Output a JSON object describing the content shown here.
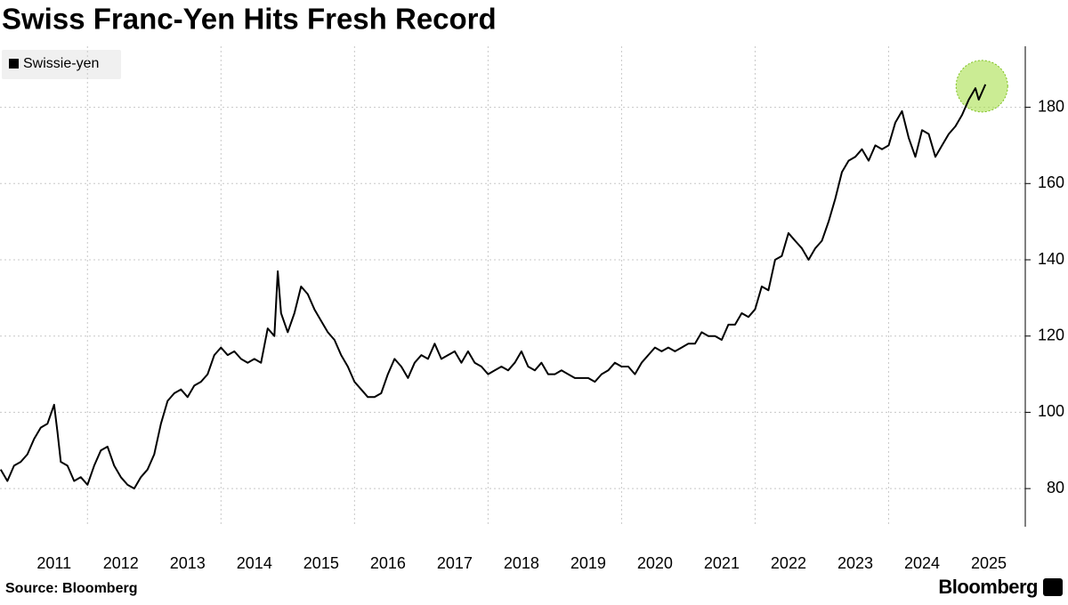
{
  "chart_data": {
    "type": "line",
    "title": "Swiss Franc-Yen Hits Fresh Record",
    "source": "Source: Bloomberg",
    "brand": "Bloomberg",
    "x": [
      2010.7,
      2010.8,
      2010.9,
      2011.0,
      2011.1,
      2011.2,
      2011.3,
      2011.4,
      2011.5,
      2011.55,
      2011.6,
      2011.7,
      2011.8,
      2011.9,
      2012.0,
      2012.1,
      2012.2,
      2012.3,
      2012.4,
      2012.5,
      2012.6,
      2012.7,
      2012.8,
      2012.9,
      2013.0,
      2013.1,
      2013.2,
      2013.3,
      2013.4,
      2013.5,
      2013.6,
      2013.7,
      2013.8,
      2013.9,
      2014.0,
      2014.1,
      2014.2,
      2014.3,
      2014.4,
      2014.5,
      2014.6,
      2014.7,
      2014.8,
      2014.85,
      2014.9,
      2015.0,
      2015.1,
      2015.2,
      2015.3,
      2015.4,
      2015.5,
      2015.6,
      2015.7,
      2015.8,
      2015.9,
      2016.0,
      2016.1,
      2016.2,
      2016.3,
      2016.4,
      2016.5,
      2016.6,
      2016.7,
      2016.8,
      2016.9,
      2017.0,
      2017.1,
      2017.2,
      2017.3,
      2017.4,
      2017.5,
      2017.6,
      2017.7,
      2017.8,
      2017.9,
      2018.0,
      2018.1,
      2018.2,
      2018.3,
      2018.4,
      2018.5,
      2018.6,
      2018.7,
      2018.8,
      2018.9,
      2019.0,
      2019.1,
      2019.2,
      2019.3,
      2019.4,
      2019.5,
      2019.6,
      2019.7,
      2019.8,
      2019.9,
      2020.0,
      2020.1,
      2020.2,
      2020.3,
      2020.4,
      2020.5,
      2020.6,
      2020.7,
      2020.8,
      2020.9,
      2021.0,
      2021.1,
      2021.2,
      2021.3,
      2021.4,
      2021.5,
      2021.6,
      2021.7,
      2021.8,
      2021.9,
      2022.0,
      2022.1,
      2022.2,
      2022.3,
      2022.4,
      2022.5,
      2022.6,
      2022.7,
      2022.8,
      2022.9,
      2023.0,
      2023.1,
      2023.2,
      2023.3,
      2023.4,
      2023.5,
      2023.6,
      2023.7,
      2023.8,
      2023.9,
      2024.0,
      2024.1,
      2024.2,
      2024.3,
      2024.4,
      2024.5,
      2024.6,
      2024.7,
      2024.8,
      2024.9,
      2025.0,
      2025.1,
      2025.2,
      2025.3,
      2025.35,
      2025.45
    ],
    "series": [
      {
        "name": "Swissie-yen",
        "color": "#000000",
        "values": [
          85,
          82,
          86,
          87,
          89,
          93,
          96,
          97,
          102,
          95,
          87,
          86,
          82,
          83,
          81,
          86,
          90,
          91,
          86,
          83,
          81,
          80,
          83,
          85,
          89,
          97,
          103,
          105,
          106,
          104,
          107,
          108,
          110,
          115,
          117,
          115,
          116,
          114,
          113,
          114,
          113,
          122,
          120,
          137,
          126,
          121,
          126,
          133,
          131,
          127,
          124,
          121,
          119,
          115,
          112,
          108,
          106,
          104,
          104,
          105,
          110,
          114,
          112,
          109,
          113,
          115,
          114,
          118,
          114,
          115,
          116,
          113,
          116,
          113,
          112,
          110,
          111,
          112,
          111,
          113,
          116,
          112,
          111,
          113,
          110,
          110,
          111,
          110,
          109,
          109,
          109,
          108,
          110,
          111,
          113,
          112,
          112,
          110,
          113,
          115,
          117,
          116,
          117,
          116,
          117,
          118,
          118,
          121,
          120,
          120,
          119,
          123,
          123,
          126,
          125,
          127,
          133,
          132,
          140,
          141,
          147,
          145,
          143,
          140,
          143,
          145,
          150,
          156,
          163,
          166,
          167,
          169,
          166,
          170,
          169,
          170,
          176,
          179,
          172,
          167,
          174,
          173,
          167,
          170,
          173,
          175,
          178,
          182,
          185,
          182,
          186
        ]
      }
    ],
    "xlim": [
      2010.69,
      2025.7
    ],
    "xticks": [
      2011,
      2012,
      2013,
      2014,
      2015,
      2016,
      2017,
      2018,
      2019,
      2020,
      2021,
      2022,
      2023,
      2024,
      2025
    ],
    "ylim": [
      70,
      196
    ],
    "yticks": [
      80,
      100,
      120,
      140,
      160,
      180
    ],
    "grid": true
  }
}
